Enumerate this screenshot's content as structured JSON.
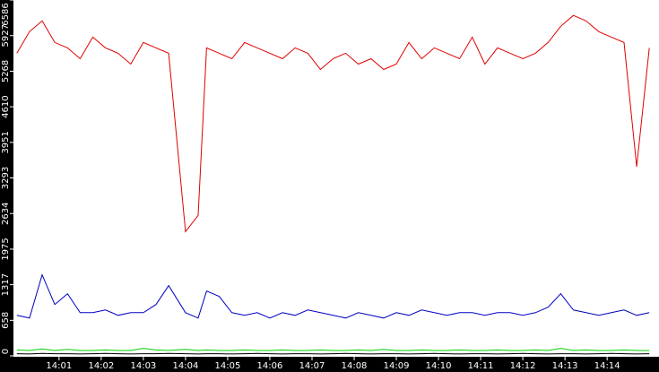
{
  "chart_data": {
    "type": "line",
    "x": [
      0,
      0.3,
      0.6,
      0.9,
      1.2,
      1.5,
      1.8,
      2.1,
      2.4,
      2.7,
      3,
      3.3,
      3.6,
      4.0,
      4.3,
      4.5,
      4.8,
      5.1,
      5.4,
      5.7,
      6,
      6.3,
      6.6,
      6.9,
      7.2,
      7.5,
      7.8,
      8.1,
      8.4,
      8.7,
      9,
      9.3,
      9.6,
      9.9,
      10.2,
      10.5,
      10.8,
      11.1,
      11.4,
      11.7,
      12,
      12.3,
      12.6,
      12.9,
      13.2,
      13.5,
      13.8,
      14.1,
      14.4,
      14.7,
      15
    ],
    "series": [
      {
        "color": "#e00000",
        "values": [
          5600,
          6000,
          6200,
          5800,
          5700,
          5500,
          5900,
          5700,
          5600,
          5400,
          5800,
          5700,
          5600,
          2300,
          2600,
          5700,
          5600,
          5500,
          5800,
          5700,
          5600,
          5500,
          5700,
          5600,
          5300,
          5500,
          5600,
          5400,
          5500,
          5300,
          5400,
          5800,
          5500,
          5700,
          5600,
          5500,
          5900,
          5400,
          5700,
          5600,
          5500,
          5600,
          5800,
          6100,
          6300,
          6200,
          6000,
          5900,
          5800,
          3500,
          5700
        ]
      },
      {
        "color": "#0000c0",
        "values": [
          750,
          700,
          1500,
          950,
          1150,
          800,
          800,
          850,
          750,
          800,
          800,
          950,
          1300,
          800,
          700,
          1200,
          1100,
          800,
          750,
          800,
          700,
          800,
          750,
          850,
          800,
          750,
          700,
          800,
          750,
          700,
          800,
          750,
          850,
          800,
          750,
          800,
          800,
          750,
          800,
          800,
          750,
          800,
          900,
          1150,
          850,
          800,
          750,
          800,
          850,
          750,
          800
        ]
      },
      {
        "color": "#00d000",
        "values": [
          110,
          100,
          130,
          100,
          120,
          100,
          100,
          110,
          100,
          100,
          140,
          110,
          100,
          120,
          100,
          110,
          100,
          100,
          110,
          100,
          100,
          110,
          100,
          100,
          110,
          100,
          100,
          110,
          100,
          120,
          100,
          100,
          110,
          100,
          100,
          110,
          100,
          100,
          110,
          100,
          100,
          110,
          100,
          140,
          100,
          110,
          100,
          100,
          110,
          100,
          100
        ]
      },
      {
        "color": "#000000",
        "values": [
          40,
          35,
          45,
          40,
          40,
          35,
          40,
          45,
          40,
          35,
          40,
          40,
          45,
          40,
          35,
          40,
          40,
          35,
          40,
          45,
          40,
          35,
          40,
          40,
          35,
          40,
          45,
          40,
          35,
          40,
          40,
          35,
          40,
          45,
          40,
          35,
          40,
          40,
          35,
          40,
          45,
          40,
          35,
          40,
          40,
          35,
          40,
          45,
          40,
          35,
          40
        ]
      }
    ],
    "xlim": [
      -0.06,
      15.23
    ],
    "xticks": [
      {
        "value": 1,
        "label": "14:01"
      },
      {
        "value": 2,
        "label": "14:02"
      },
      {
        "value": 3,
        "label": "14:03"
      },
      {
        "value": 4,
        "label": "14:04"
      },
      {
        "value": 5,
        "label": "14:05"
      },
      {
        "value": 6,
        "label": "14:06"
      },
      {
        "value": 7,
        "label": "14:07"
      },
      {
        "value": 8,
        "label": "14:08"
      },
      {
        "value": 9,
        "label": "14:09"
      },
      {
        "value": 10,
        "label": "14:10"
      },
      {
        "value": 11,
        "label": "14:11"
      },
      {
        "value": 12,
        "label": "14:12"
      },
      {
        "value": 13,
        "label": "14:13"
      },
      {
        "value": 14,
        "label": "14:14"
      }
    ],
    "ylim": [
      0,
      6586
    ],
    "yticks": [
      0,
      658,
      1317,
      1975,
      2634,
      3293,
      3951,
      4610,
      5268,
      5927,
      6586
    ]
  }
}
